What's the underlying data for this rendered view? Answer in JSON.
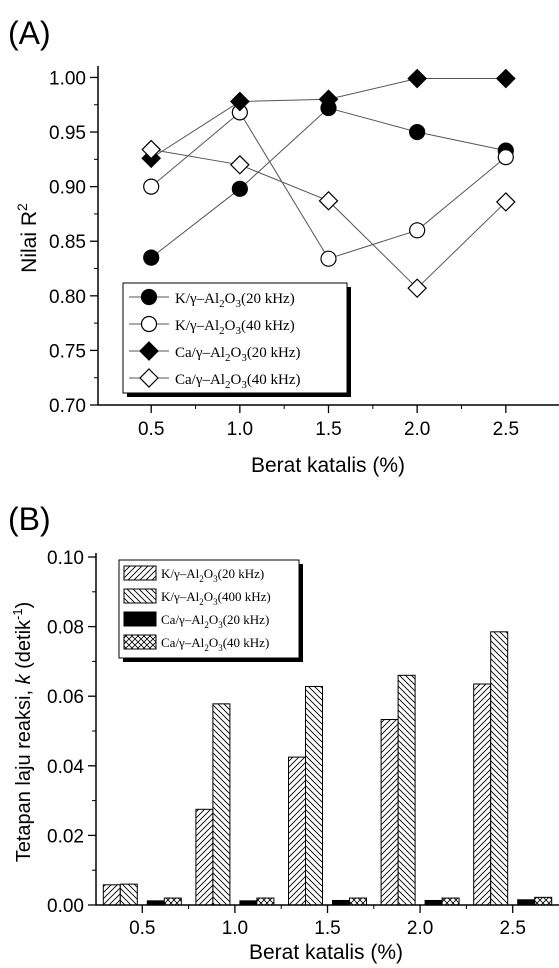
{
  "chart_data": [
    {
      "type": "line",
      "panel_label": "(A)",
      "xlabel": "Berat katalis (%)",
      "ylabel_text": "Nilai R",
      "ylabel_sup": "2",
      "xlim": [
        0.2,
        2.8
      ],
      "ylim": [
        0.7,
        1.005
      ],
      "x_ticks": [
        0.5,
        1.0,
        1.5,
        2.0,
        2.5
      ],
      "x_tick_labels": [
        "0.5",
        "1.0",
        "1.5",
        "2.0",
        "2.5"
      ],
      "y_ticks": [
        0.7,
        0.75,
        0.8,
        0.85,
        0.9,
        0.95,
        1.0
      ],
      "y_tick_labels": [
        "0.70",
        "0.75",
        "0.80",
        "0.85",
        "0.90",
        "0.95",
        "1.00"
      ],
      "legend_position": "bottom-left",
      "x": [
        0.5,
        1.0,
        1.5,
        2.0,
        2.5
      ],
      "series": [
        {
          "name": "K/γ–Al2O3(20 kHz)",
          "marker": "circle-filled",
          "values": [
            0.835,
            0.898,
            0.972,
            0.95,
            0.933
          ],
          "legend": {
            "prefix": "K/γ–Al",
            "sub1": "2",
            "mid": "O",
            "sub2": "3",
            "suffix": "(20 kHz)"
          }
        },
        {
          "name": "K/γ–Al2O3(40 kHz)",
          "marker": "circle-open",
          "values": [
            0.9,
            0.968,
            0.834,
            0.86,
            0.927
          ],
          "legend": {
            "prefix": "K/γ–Al",
            "sub1": "2",
            "mid": "O",
            "sub2": "3",
            "suffix": "(40 kHz)"
          }
        },
        {
          "name": "Ca/γ–Al2O3(20 kHz)",
          "marker": "diamond-filled",
          "values": [
            0.926,
            0.978,
            0.98,
            0.999,
            0.999
          ],
          "legend": {
            "prefix": "Ca/γ–Al",
            "sub1": "2",
            "mid": "O",
            "sub2": "3",
            "suffix": "(20 kHz)"
          }
        },
        {
          "name": "Ca/γ–Al2O3(40 kHz)",
          "marker": "diamond-open",
          "values": [
            0.934,
            0.92,
            0.887,
            0.807,
            0.886
          ],
          "legend": {
            "prefix": "Ca/γ–Al",
            "sub1": "2",
            "mid": "O",
            "sub2": "3",
            "suffix": "(40 kHz)"
          }
        }
      ]
    },
    {
      "type": "bar",
      "panel_label": "(B)",
      "xlabel": "Berat katalis (%)",
      "ylabel_text": "Tetapan laju reaksi, ",
      "ylabel_k": "k",
      "ylabel_unit": " (detik",
      "ylabel_sup": "-1",
      "ylabel_close": ")",
      "ylim": [
        0.0,
        0.1
      ],
      "categories": [
        "0.5",
        "1.0",
        "1.5",
        "2.0",
        "2.5"
      ],
      "y_ticks": [
        0.0,
        0.02,
        0.04,
        0.06,
        0.08,
        0.1
      ],
      "y_tick_labels": [
        "0.00",
        "0.02",
        "0.04",
        "0.06",
        "0.08",
        "0.10"
      ],
      "legend_position": "top-left",
      "series": [
        {
          "name": "K/γ–Al2O3(20 kHz)",
          "pattern": "diag-left",
          "values": [
            0.0058,
            0.0275,
            0.0425,
            0.0533,
            0.0635
          ],
          "legend": {
            "prefix": "K/γ–Al",
            "sub1": "2",
            "mid": "O",
            "sub2": "3",
            "suffix": "(20 kHz)"
          }
        },
        {
          "name": "K/γ–Al2O3(400 kHz)",
          "pattern": "diag-right",
          "values": [
            0.006,
            0.0578,
            0.0628,
            0.066,
            0.0785
          ],
          "legend": {
            "prefix": "K/γ–Al",
            "sub1": "2",
            "mid": "O",
            "sub2": "3",
            "suffix": "(400 kHz)"
          }
        },
        {
          "name": "Ca/γ–Al2O3(20 kHz)",
          "pattern": "solid",
          "values": [
            0.0012,
            0.0012,
            0.0013,
            0.0013,
            0.0015
          ],
          "legend": {
            "prefix": "Ca/γ–Al",
            "sub1": "2",
            "mid": "O",
            "sub2": "3",
            "suffix": "(20 kHz)"
          }
        },
        {
          "name": "Ca/γ–Al2O3(40 kHz)",
          "pattern": "crosshatch",
          "values": [
            0.002,
            0.002,
            0.002,
            0.002,
            0.0022
          ],
          "legend": {
            "prefix": "Ca/γ–Al",
            "sub1": "2",
            "mid": "O",
            "sub2": "3",
            "suffix": "(40 kHz)"
          }
        }
      ]
    }
  ]
}
